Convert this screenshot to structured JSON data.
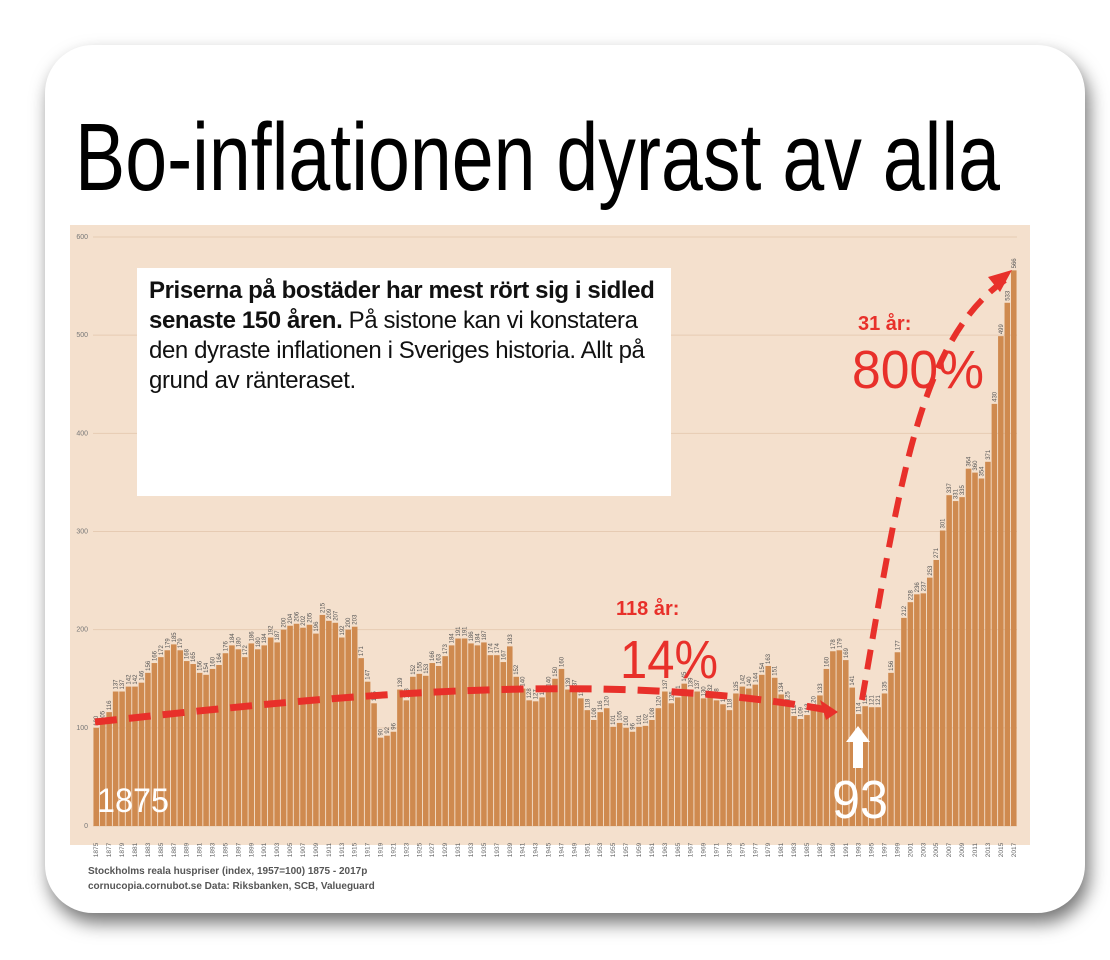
{
  "chart_data": {
    "type": "bar",
    "title": "Bo-inflationen dyrast av alla",
    "info_bold": "Priserna på bostäder har mest rört sig i sidled senaste 150 åren.",
    "info_text": "På sistone kan vi konstatera den dyraste inflationen i Sveriges historia. Allt på grund av ränteraset.",
    "annotations": [
      "31 år:",
      "800%",
      "118 år:",
      "14%",
      "1875",
      "93"
    ],
    "footer": [
      "Stockholms reala huspriser (index, 1957=100) 1875 - 2017p",
      "cornucopia.cornubot.se Data: Riksbanken, SCB, Valueguard"
    ],
    "categories": [
      "1875",
      null,
      "1877",
      null,
      "1879",
      null,
      "1881",
      null,
      "1883",
      null,
      "1885",
      null,
      "1887",
      null,
      "1889",
      null,
      "1891",
      null,
      "1893",
      null,
      "1895",
      null,
      "1897",
      null,
      "1899",
      null,
      "1901",
      null,
      "1903",
      null,
      "1905",
      null,
      "1907",
      null,
      "1909",
      null,
      "1911",
      null,
      "1913",
      null,
      "1915",
      null,
      "1917",
      null,
      "1919",
      null,
      "1921",
      null,
      "1923",
      null,
      "1925",
      null,
      "1927",
      null,
      "1929",
      null,
      "1931",
      null,
      "1933",
      null,
      "1935",
      null,
      "1937",
      null,
      "1939",
      null,
      "1941",
      null,
      "1943",
      null,
      "1945",
      null,
      "1947",
      null,
      "1949",
      null,
      "1951",
      null,
      "1953",
      null,
      "1955",
      null,
      "1957",
      null,
      "1959",
      null,
      "1961",
      null,
      "1963",
      null,
      "1965",
      null,
      "1967",
      null,
      "1969",
      null,
      "1971",
      null,
      "1973",
      null,
      "1975",
      null,
      "1977",
      null,
      "1979",
      null,
      "1981",
      null,
      "1983",
      null,
      "1985",
      null,
      "1987",
      null,
      "1989",
      null,
      "1991",
      null,
      "1993",
      null,
      "1995",
      null,
      "1997",
      null,
      "1999",
      null,
      "2001",
      null,
      "2003",
      null,
      "2005",
      null,
      "2007",
      null,
      "2009",
      null,
      "2011",
      null,
      "2013",
      null,
      "2015",
      null,
      "2017"
    ],
    "values": [
      100,
      105,
      116,
      137,
      137,
      142,
      142,
      146,
      156,
      166,
      172,
      179,
      185,
      179,
      168,
      165,
      156,
      154,
      160,
      164,
      176,
      184,
      180,
      172,
      186,
      180,
      184,
      192,
      187,
      200,
      204,
      206,
      202,
      205,
      196,
      215,
      209,
      207,
      192,
      200,
      203,
      171,
      147,
      125,
      90,
      92,
      96,
      139,
      128,
      152,
      155,
      153,
      166,
      163,
      173,
      184,
      191,
      191,
      186,
      184,
      187,
      174,
      174,
      167,
      183,
      152,
      140,
      128,
      127,
      131,
      140,
      150,
      160,
      139,
      137,
      130,
      118,
      108,
      116,
      120,
      101,
      105,
      100,
      96,
      101,
      102,
      108,
      120,
      137,
      125,
      131,
      145,
      139,
      137,
      130,
      132,
      128,
      124,
      118,
      135,
      142,
      140,
      144,
      154,
      163,
      151,
      134,
      125,
      112,
      109,
      113,
      120,
      133,
      160,
      178,
      179,
      169,
      141,
      114,
      122,
      121,
      121,
      135,
      156,
      177,
      212,
      228,
      236,
      237,
      253,
      271,
      301,
      337,
      331,
      335,
      364,
      360,
      354,
      371,
      430,
      499,
      533,
      566
    ],
    "color": "#cf8a4f",
    "ylim": [
      0,
      600
    ],
    "yticks": [
      0,
      100,
      200,
      300,
      400,
      500,
      600
    ],
    "grid": true
  }
}
